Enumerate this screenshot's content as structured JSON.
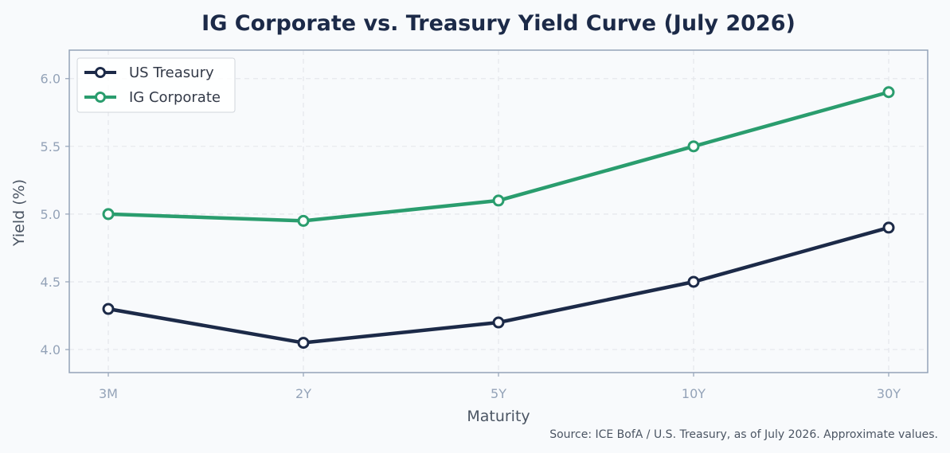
{
  "chart_data": {
    "type": "line",
    "title": "IG Corporate vs. Treasury Yield Curve (July 2026)",
    "xlabel": "Maturity",
    "ylabel": "Yield (%)",
    "categories": [
      "3M",
      "2Y",
      "5Y",
      "10Y",
      "30Y"
    ],
    "ylim": [
      3.83,
      6.21
    ],
    "yticks": [
      "4.0",
      "4.5",
      "5.0",
      "5.5",
      "6.0"
    ],
    "grid": true,
    "legend_position": "top-left",
    "series": [
      {
        "name": "US Treasury",
        "color": "#1c2a48",
        "values": [
          4.3,
          4.05,
          4.2,
          4.5,
          4.9
        ]
      },
      {
        "name": "IG Corporate",
        "color": "#2a9d6e",
        "values": [
          5.0,
          4.95,
          5.1,
          5.5,
          5.9
        ]
      }
    ],
    "source": "Source: ICE BofA / U.S. Treasury, as of July 2026. Approximate values."
  }
}
